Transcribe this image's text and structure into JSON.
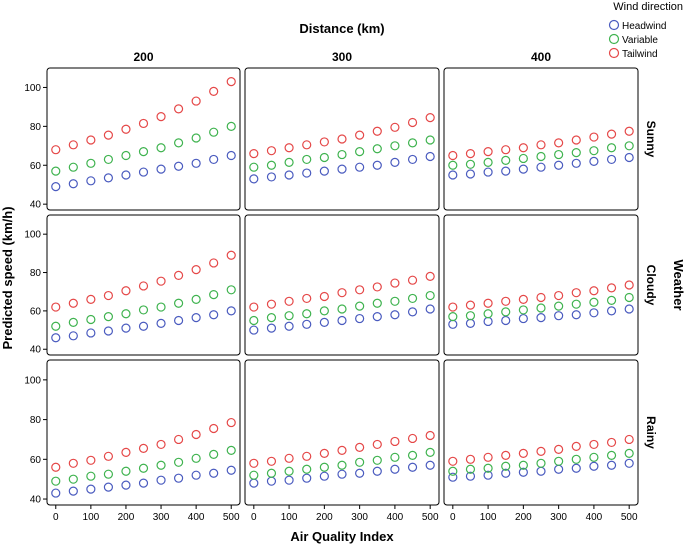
{
  "chart_data": {
    "type": "scatter",
    "title": "",
    "xlabel": "Air Quality Index",
    "ylabel": "Predicted speed (km/h)",
    "column_facet": {
      "title": "Distance (km)",
      "levels": [
        "200",
        "300",
        "400"
      ]
    },
    "row_facet": {
      "title": "Weather",
      "levels": [
        "Sunny",
        "Cloudy",
        "Rainy"
      ]
    },
    "legend": {
      "title": "Wind direction",
      "placement": "top-right",
      "entries": [
        {
          "name": "Headwind",
          "color": "#4a5bbf"
        },
        {
          "name": "Variable",
          "color": "#3fb34f"
        },
        {
          "name": "Tailwind",
          "color": "#e54848"
        }
      ]
    },
    "x": [
      0,
      50,
      100,
      150,
      200,
      250,
      300,
      350,
      400,
      450,
      500
    ],
    "xticks": [
      0,
      100,
      200,
      300,
      400,
      500
    ],
    "xticklabels": [
      "0",
      "100",
      "200",
      "300",
      "400",
      "500"
    ],
    "xlim": [
      -25,
      525
    ],
    "yticks": [
      40,
      60,
      80,
      100
    ],
    "yticklabels": [
      "40",
      "60",
      "80",
      "100"
    ],
    "ylim": [
      37,
      110
    ],
    "grid": false,
    "panels": [
      {
        "row": "Sunny",
        "col": "200",
        "series": [
          {
            "name": "Headwind",
            "values": [
              49,
              50.5,
              52,
              53.5,
              55,
              56.5,
              58,
              59.5,
              61,
              63,
              65
            ]
          },
          {
            "name": "Variable",
            "values": [
              57,
              59,
              61,
              63,
              65,
              67,
              69,
              71.5,
              74,
              77,
              80
            ]
          },
          {
            "name": "Tailwind",
            "values": [
              68,
              70.5,
              73,
              75.5,
              78.5,
              81.5,
              85,
              89,
              93,
              98,
              103
            ]
          }
        ]
      },
      {
        "row": "Sunny",
        "col": "300",
        "series": [
          {
            "name": "Headwind",
            "values": [
              53,
              54,
              55,
              56,
              57,
              58,
              59,
              60,
              61.5,
              63,
              64.5
            ]
          },
          {
            "name": "Variable",
            "values": [
              59,
              60,
              61.5,
              63,
              64,
              65.5,
              67,
              68.5,
              70,
              71.5,
              73
            ]
          },
          {
            "name": "Tailwind",
            "values": [
              66,
              67.5,
              69,
              70.5,
              72,
              73.5,
              75.5,
              77.5,
              79.5,
              82,
              84.5
            ]
          }
        ]
      },
      {
        "row": "Sunny",
        "col": "400",
        "series": [
          {
            "name": "Headwind",
            "values": [
              55,
              55.5,
              56.5,
              57,
              58,
              59,
              60,
              61,
              62,
              63,
              64
            ]
          },
          {
            "name": "Variable",
            "values": [
              60,
              60.5,
              61.5,
              62.5,
              63.5,
              64.5,
              65.5,
              66.5,
              67.5,
              69,
              70
            ]
          },
          {
            "name": "Tailwind",
            "values": [
              65,
              66,
              67,
              68,
              69,
              70.5,
              71.5,
              73,
              74.5,
              76,
              77.5
            ]
          }
        ]
      },
      {
        "row": "Cloudy",
        "col": "200",
        "series": [
          {
            "name": "Headwind",
            "values": [
              46,
              47,
              48.5,
              49.5,
              51,
              52,
              53.5,
              55,
              56.5,
              58,
              60
            ]
          },
          {
            "name": "Variable",
            "values": [
              52,
              54,
              55.5,
              57,
              58.5,
              60.5,
              62,
              64,
              66,
              68.5,
              71
            ]
          },
          {
            "name": "Tailwind",
            "values": [
              62,
              64,
              66,
              68,
              70.5,
              73,
              75.5,
              78.5,
              81.5,
              85,
              89
            ]
          }
        ]
      },
      {
        "row": "Cloudy",
        "col": "300",
        "series": [
          {
            "name": "Headwind",
            "values": [
              50,
              51,
              52,
              53,
              54,
              55,
              56,
              57,
              58,
              59.5,
              61
            ]
          },
          {
            "name": "Variable",
            "values": [
              55,
              56.5,
              57.5,
              58.5,
              60,
              61,
              62.5,
              64,
              65,
              66.5,
              68
            ]
          },
          {
            "name": "Tailwind",
            "values": [
              62,
              63.5,
              65,
              66.5,
              67.5,
              69.5,
              71,
              72.5,
              74.5,
              76,
              78
            ]
          }
        ]
      },
      {
        "row": "Cloudy",
        "col": "400",
        "series": [
          {
            "name": "Headwind",
            "values": [
              53,
              53.5,
              54.5,
              55,
              56,
              56.5,
              57.5,
              58,
              59,
              60,
              61
            ]
          },
          {
            "name": "Variable",
            "values": [
              57,
              57.5,
              58.5,
              59.5,
              60.5,
              61.5,
              62.5,
              63.5,
              64.5,
              65.5,
              67
            ]
          },
          {
            "name": "Tailwind",
            "values": [
              62,
              63,
              64,
              65,
              66,
              67,
              68,
              69.5,
              70.5,
              72,
              73.5
            ]
          }
        ]
      },
      {
        "row": "Rainy",
        "col": "200",
        "series": [
          {
            "name": "Headwind",
            "values": [
              43,
              44,
              45,
              46,
              47,
              48,
              49.5,
              50.5,
              52,
              53,
              54.5
            ]
          },
          {
            "name": "Variable",
            "values": [
              49,
              50,
              51.5,
              52.5,
              54,
              55.5,
              57,
              58.5,
              60.5,
              62.5,
              64.5
            ]
          },
          {
            "name": "Tailwind",
            "values": [
              56,
              58,
              59.5,
              61.5,
              63.5,
              65.5,
              67.5,
              70,
              72.5,
              75.5,
              78.5
            ]
          }
        ]
      },
      {
        "row": "Rainy",
        "col": "300",
        "series": [
          {
            "name": "Headwind",
            "values": [
              48,
              49,
              49.5,
              50.5,
              51.5,
              52.5,
              53,
              54,
              55,
              56,
              57
            ]
          },
          {
            "name": "Variable",
            "values": [
              52,
              53,
              54,
              55,
              56,
              57,
              58.5,
              59.5,
              61,
              62,
              63.5
            ]
          },
          {
            "name": "Tailwind",
            "values": [
              58,
              59,
              60.5,
              61.5,
              63,
              64.5,
              66,
              67.5,
              69,
              70.5,
              72
            ]
          }
        ]
      },
      {
        "row": "Rainy",
        "col": "400",
        "series": [
          {
            "name": "Headwind",
            "values": [
              51,
              51.5,
              52,
              53,
              53.5,
              54,
              55,
              55.5,
              56.5,
              57,
              58
            ]
          },
          {
            "name": "Variable",
            "values": [
              54,
              55,
              55.5,
              56.5,
              57,
              58,
              59,
              60,
              61,
              62,
              63
            ]
          },
          {
            "name": "Tailwind",
            "values": [
              59,
              60,
              61,
              62,
              63,
              64,
              65,
              66.5,
              67.5,
              68.5,
              70
            ]
          }
        ]
      }
    ]
  }
}
